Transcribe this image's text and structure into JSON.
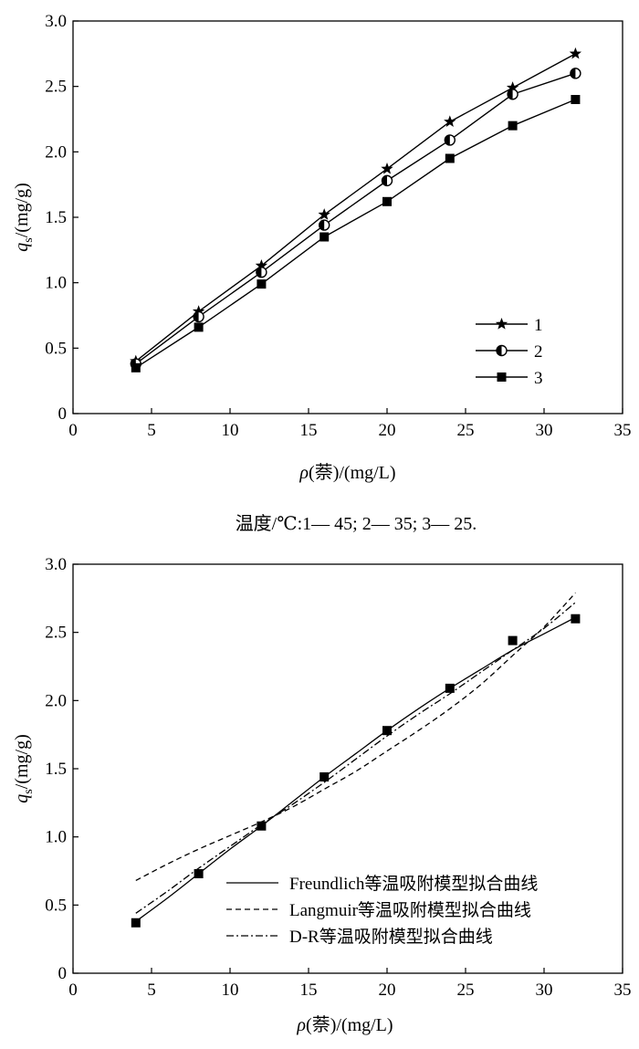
{
  "chart_data": [
    {
      "type": "line",
      "xlabel_prefix": "ρ",
      "xlabel_rest": "(萘)/(mg/L)",
      "ylabel_main": "q",
      "ylabel_sub": "s",
      "ylabel_rest": "/(mg/g)",
      "xlim": [
        0,
        35
      ],
      "ylim": [
        0,
        3.0
      ],
      "xticks": [
        "0",
        "5",
        "10",
        "15",
        "20",
        "25",
        "30",
        "35"
      ],
      "yticks": [
        "0",
        "0.5",
        "1.0",
        "1.5",
        "2.0",
        "2.5",
        "3.0"
      ],
      "xtick_values": [
        0,
        5,
        10,
        15,
        20,
        25,
        30,
        35
      ],
      "ytick_values": [
        0,
        0.5,
        1.0,
        1.5,
        2.0,
        2.5,
        3.0
      ],
      "legend_position": "lower-right",
      "x": [
        4,
        8,
        12,
        16,
        20,
        24,
        28,
        32
      ],
      "series": [
        {
          "name": "1",
          "marker": "star",
          "values": [
            0.4,
            0.78,
            1.13,
            1.52,
            1.87,
            2.23,
            2.49,
            2.75
          ]
        },
        {
          "name": "2",
          "marker": "half-circle",
          "values": [
            0.38,
            0.74,
            1.08,
            1.44,
            1.78,
            2.09,
            2.44,
            2.6
          ]
        },
        {
          "name": "3",
          "marker": "square",
          "values": [
            0.35,
            0.66,
            0.99,
            1.35,
            1.62,
            1.95,
            2.2,
            2.4
          ]
        }
      ],
      "caption": "温度/℃:1— 45;  2— 35;  3— 25."
    },
    {
      "type": "line",
      "xlabel_prefix": "ρ",
      "xlabel_rest": "(萘)/(mg/L)",
      "ylabel_main": "q",
      "ylabel_sub": "s",
      "ylabel_rest": "/(mg/g)",
      "xlim": [
        0,
        35
      ],
      "ylim": [
        0,
        3.0
      ],
      "xticks": [
        "0",
        "5",
        "10",
        "15",
        "20",
        "25",
        "30",
        "35"
      ],
      "yticks": [
        "0",
        "0.5",
        "1.0",
        "1.5",
        "2.0",
        "2.5",
        "3.0"
      ],
      "xtick_values": [
        0,
        5,
        10,
        15,
        20,
        25,
        30,
        35
      ],
      "ytick_values": [
        0,
        0.5,
        1.0,
        1.5,
        2.0,
        2.5,
        3.0
      ],
      "legend_position": "lower-right",
      "points": {
        "x": [
          4,
          8,
          12,
          16,
          20,
          24,
          28,
          32
        ],
        "y": [
          0.37,
          0.73,
          1.08,
          1.44,
          1.78,
          2.09,
          2.44,
          2.6
        ]
      },
      "series": [
        {
          "name": "Freundlich等温吸附模型拟合曲线",
          "style": "solid",
          "x": [
            4,
            6,
            8,
            10,
            12,
            14,
            16,
            18,
            20,
            22,
            24,
            26,
            28,
            30,
            32
          ],
          "y": [
            0.38,
            0.55,
            0.73,
            0.91,
            1.08,
            1.26,
            1.44,
            1.61,
            1.78,
            1.94,
            2.09,
            2.23,
            2.37,
            2.49,
            2.61
          ]
        },
        {
          "name": "Langmuir等温吸附模型拟合曲线",
          "style": "dashed",
          "x": [
            4,
            6,
            8,
            10,
            12,
            14,
            16,
            18,
            20,
            22,
            24,
            26,
            28,
            30,
            32
          ],
          "y": [
            0.68,
            0.8,
            0.91,
            1.01,
            1.11,
            1.22,
            1.35,
            1.48,
            1.63,
            1.78,
            1.94,
            2.12,
            2.33,
            2.54,
            2.79
          ]
        },
        {
          "name": "D-R等温吸附模型拟合曲线",
          "style": "dashdot",
          "x": [
            4,
            6,
            8,
            10,
            12,
            14,
            16,
            18,
            20,
            22,
            24,
            26,
            28,
            30,
            32
          ],
          "y": [
            0.44,
            0.6,
            0.77,
            0.93,
            1.09,
            1.24,
            1.4,
            1.57,
            1.74,
            1.9,
            2.05,
            2.21,
            2.37,
            2.53,
            2.72
          ]
        }
      ]
    }
  ]
}
